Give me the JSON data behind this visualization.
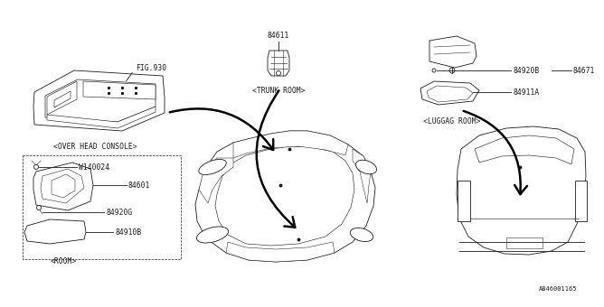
{
  "bg_color": "#ffffff",
  "line_color": "#1a1a1a",
  "title_bottom": "A846001165",
  "labels": {
    "fig930": "FIG.930",
    "over_head": "<OVER HEAD CONSOLE>",
    "trunk_room_num": "84611",
    "trunk_room": "<TRUNK ROOM>",
    "luggag_room": "<LUGGAG ROOM>",
    "room": "<ROOM>",
    "part_84601": "84601",
    "part_84920G": "84920G",
    "part_84910B": "84910B",
    "part_W140024": "W140024",
    "part_84920B": "84920B",
    "part_84671": "84671",
    "part_84911A": "84911A"
  }
}
